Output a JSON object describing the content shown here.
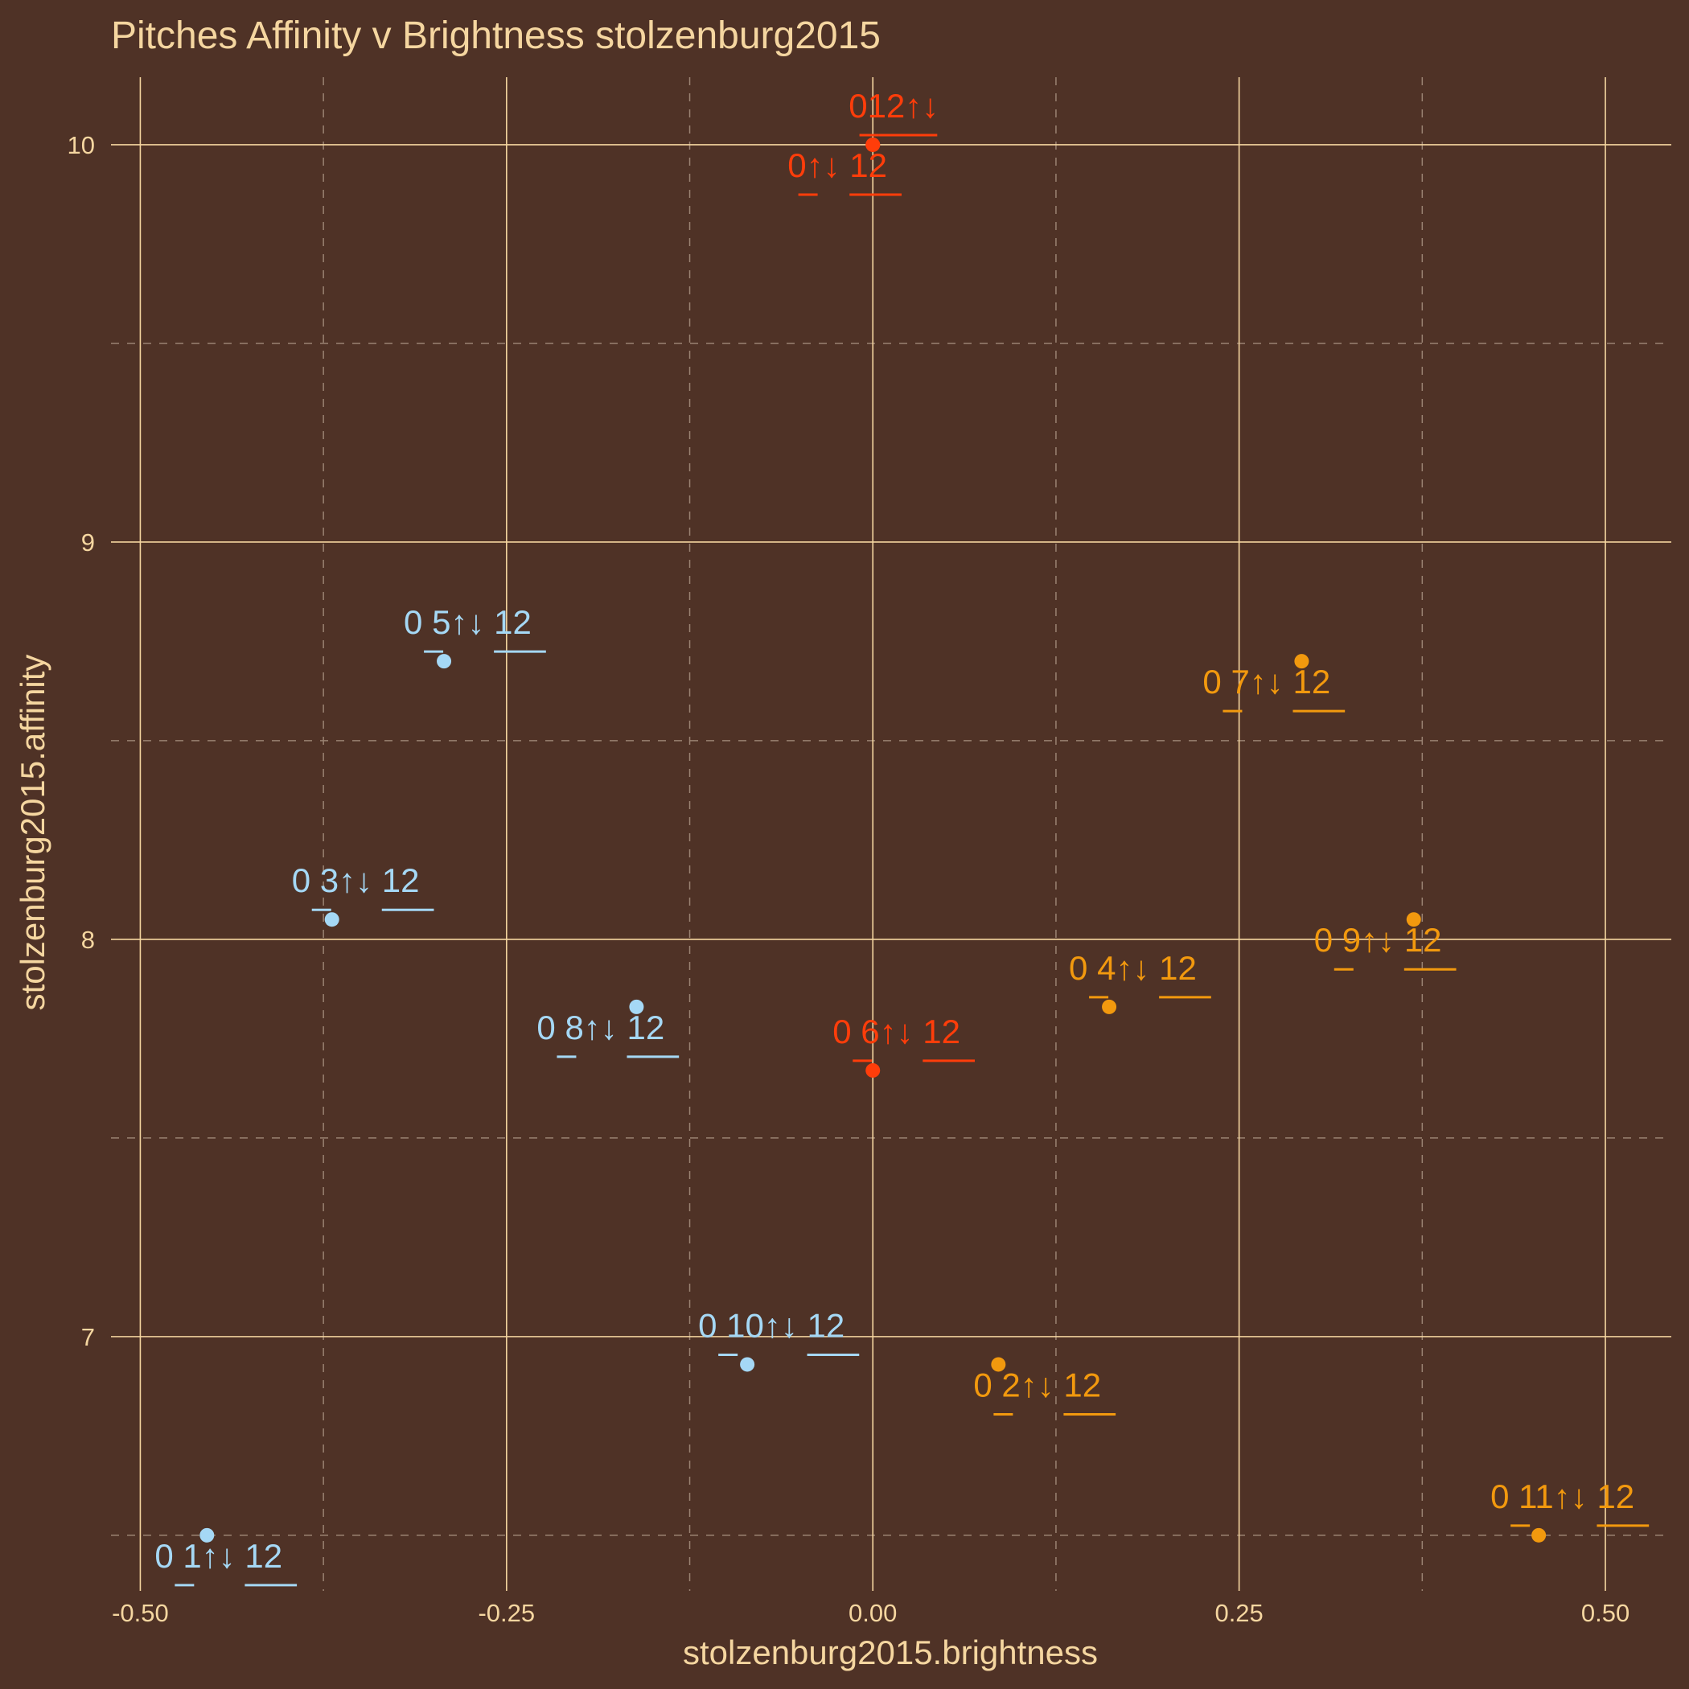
{
  "chart_data": {
    "type": "scatter",
    "title": "Pitches Affinity v Brightness stolzenburg2015",
    "xlabel": "stolzenburg2015.brightness",
    "ylabel": "stolzenburg2015.affinity",
    "xlim": [
      -0.52,
      0.545
    ],
    "ylim": [
      6.36,
      10.17
    ],
    "x_ticks": [
      -0.5,
      -0.25,
      0.0,
      0.25,
      0.5
    ],
    "x_tick_labels": [
      "-0.50",
      "-0.25",
      "0.00",
      "0.25",
      "0.50"
    ],
    "y_ticks": [
      7,
      8,
      9,
      10
    ],
    "y_tick_labels": [
      "7",
      "8",
      "9",
      "10"
    ],
    "grid": true,
    "legend": "none",
    "colors": {
      "background": "#4f3226",
      "text": "#f5d6a0",
      "grid_major": "#f5d6a0",
      "grid_minor": "#9a8272",
      "blue": "#a5d8f5",
      "orange": "#f2990e",
      "red": "#ff3d0a"
    },
    "points": [
      {
        "x": -0.4545,
        "y": 6.5,
        "color": "blue",
        "label": {
          "pre": "0",
          "p1": "1",
          "arrows": "↑↓",
          "sp": " ",
          "p2": "12",
          "mid": " ",
          "dx": -65,
          "dy": 40
        }
      },
      {
        "x": 0.0857,
        "y": 6.93,
        "color": "orange",
        "label": {
          "pre": "0",
          "p1": "2",
          "arrows": "↑↓",
          "sp": " ",
          "p2": "12",
          "mid": " ",
          "dx": -31,
          "dy": 40
        }
      },
      {
        "x": -0.3692,
        "y": 8.05,
        "color": "blue",
        "label": {
          "pre": "0",
          "p1": "3",
          "arrows": "↑↓",
          "sp": " ",
          "p2": "12",
          "mid": " ",
          "dx": -50,
          "dy": -34
        }
      },
      {
        "x": 0.1613,
        "y": 7.83,
        "color": "orange",
        "label": {
          "pre": "0",
          "p1": "4",
          "arrows": "↑↓",
          "sp": " ",
          "p2": "12",
          "mid": " ",
          "dx": -50,
          "dy": -34
        }
      },
      {
        "x": -0.2927,
        "y": 8.7,
        "color": "blue",
        "label": {
          "pre": "0",
          "p1": "5",
          "arrows": "↑↓",
          "sp": " ",
          "p2": "12",
          "mid": " ",
          "dx": -50,
          "dy": -34
        }
      },
      {
        "x": 0.0,
        "y": 7.67,
        "color": "red",
        "label": {
          "pre": "0",
          "p1": "6",
          "arrows": "↑↓",
          "sp": " ",
          "p2": "12",
          "mid": " ",
          "dx": -50,
          "dy": -34
        }
      },
      {
        "x": 0.2927,
        "y": 8.7,
        "color": "orange",
        "label": {
          "pre": "0",
          "p1": "7",
          "arrows": "↑↓",
          "sp": " ",
          "p2": "12",
          "mid": " ",
          "dx": -123,
          "dy": 40
        }
      },
      {
        "x": -0.1613,
        "y": 7.83,
        "color": "blue",
        "label": {
          "pre": "0",
          "p1": "8",
          "arrows": "↑↓",
          "sp": " ",
          "p2": "12",
          "mid": " ",
          "dx": -124,
          "dy": 40
        }
      },
      {
        "x": 0.3692,
        "y": 8.05,
        "color": "orange",
        "label": {
          "pre": "0",
          "p1": "9",
          "arrows": "↑↓",
          "sp": " ",
          "p2": "12",
          "mid": " ",
          "dx": -124,
          "dy": 40
        }
      },
      {
        "x": -0.0857,
        "y": 6.93,
        "color": "blue",
        "label": {
          "pre": "0",
          "p1": "10",
          "arrows": "↑↓",
          "sp": " ",
          "p2": "12",
          "mid": " ",
          "dx": -61,
          "dy": -34
        }
      },
      {
        "x": 0.4545,
        "y": 6.5,
        "color": "orange",
        "label": {
          "pre": "0",
          "p1": "11",
          "arrows": "↑↓",
          "sp": " ",
          "p2": "12",
          "mid": " ",
          "dx": -60,
          "dy": -34
        }
      },
      {
        "x": 0.0,
        "y": 10.0,
        "color": "red",
        "label": {
          "pre": "0",
          "p1": "12",
          "arrows": "↑↓",
          "sp": "",
          "p2": "",
          "mid": "",
          "dx": -30,
          "dy": -34
        }
      },
      {
        "x": 0.0,
        "y": 10.0,
        "color": "red",
        "label": {
          "pre": "0",
          "p1": "",
          "arrows": "↑↓",
          "sp": " ",
          "p2": "12",
          "mid": "",
          "dx": -106,
          "dy": 40
        }
      }
    ]
  }
}
